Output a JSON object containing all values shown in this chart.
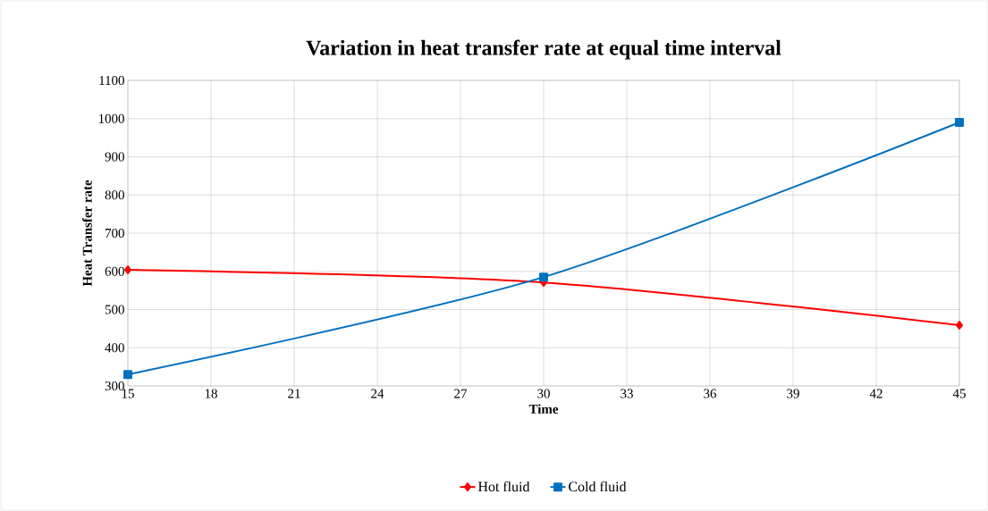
{
  "chart_data": {
    "type": "line",
    "title": "Variation  in heat transfer rate at equal time interval",
    "xlabel": "Time",
    "ylabel": "Heat Transfer rate",
    "x": [
      15,
      30,
      45
    ],
    "series": [
      {
        "name": "Hot fluid",
        "color": "#ff0000",
        "marker": "diamond",
        "values": [
          604,
          571,
          459
        ]
      },
      {
        "name": "Cold fluid",
        "color": "#0070c0",
        "marker": "square",
        "values": [
          330,
          585,
          990
        ]
      }
    ],
    "xlim": [
      15,
      45
    ],
    "xticks": [
      15,
      18,
      21,
      24,
      27,
      30,
      33,
      36,
      39,
      42,
      45
    ],
    "ylim": [
      300,
      1100
    ],
    "yticks": [
      300,
      400,
      500,
      600,
      700,
      800,
      900,
      1000,
      1100
    ],
    "grid": true,
    "legend": "bottom"
  }
}
